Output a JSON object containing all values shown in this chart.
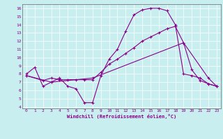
{
  "xlabel": "Windchill (Refroidissement éolien,°C)",
  "bg_color": "#c8eef0",
  "line_color": "#880088",
  "xlim": [
    -0.5,
    23.5
  ],
  "ylim": [
    3.8,
    16.5
  ],
  "xticks": [
    0,
    1,
    2,
    3,
    4,
    5,
    6,
    7,
    8,
    9,
    10,
    11,
    12,
    13,
    14,
    15,
    16,
    17,
    18,
    19,
    20,
    21,
    22,
    23
  ],
  "yticks": [
    4,
    5,
    6,
    7,
    8,
    9,
    10,
    11,
    12,
    13,
    14,
    15,
    16
  ],
  "line1_x": [
    0,
    1,
    2,
    3,
    4,
    5,
    6,
    7,
    8,
    9,
    10,
    11,
    12,
    13,
    14,
    15,
    16,
    17,
    18,
    19,
    20,
    21,
    22,
    23
  ],
  "line1_y": [
    8.0,
    8.8,
    6.5,
    7.0,
    7.5,
    6.5,
    6.2,
    4.5,
    4.5,
    7.8,
    9.8,
    11.0,
    13.2,
    15.2,
    15.8,
    16.0,
    16.0,
    15.7,
    14.0,
    8.0,
    7.8,
    7.5,
    6.8,
    6.5
  ],
  "line2_x": [
    0,
    2,
    3,
    4,
    5,
    6,
    7,
    8,
    9,
    10,
    11,
    12,
    13,
    14,
    15,
    16,
    17,
    18,
    19,
    20,
    21,
    22,
    23
  ],
  "line2_y": [
    7.8,
    7.2,
    7.5,
    7.3,
    7.3,
    7.3,
    7.3,
    7.3,
    8.2,
    9.2,
    9.8,
    10.5,
    11.2,
    12.0,
    12.5,
    13.0,
    13.5,
    13.8,
    11.8,
    8.5,
    7.2,
    6.8,
    6.5
  ],
  "line3_x": [
    0,
    3,
    8,
    19,
    22,
    23
  ],
  "line3_y": [
    7.8,
    7.0,
    7.5,
    11.8,
    7.5,
    6.5
  ]
}
